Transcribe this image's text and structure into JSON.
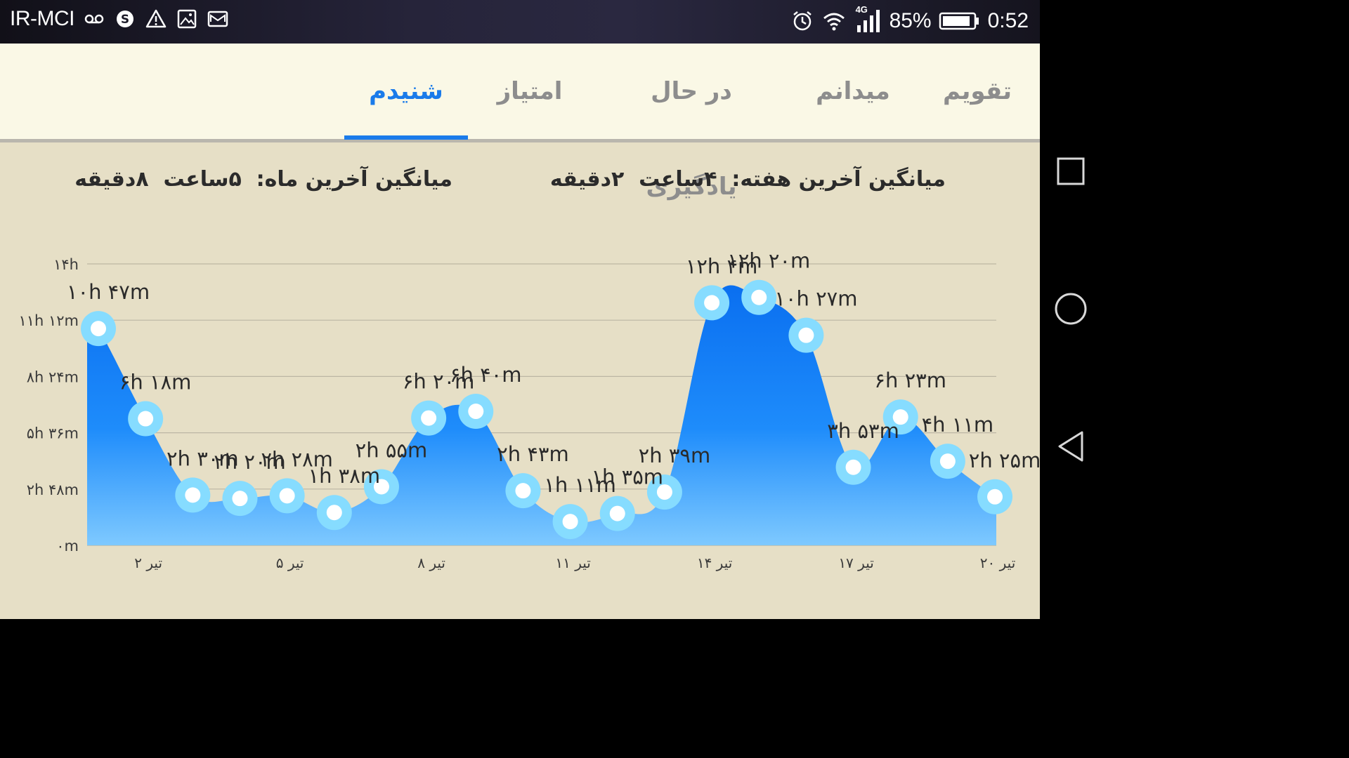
{
  "status_bar": {
    "carrier": "IR-MCI",
    "network": "4G",
    "battery": "85%",
    "time": "0:52",
    "icons": [
      "voicemail-icon",
      "skype-icon",
      "warning-icon",
      "gallery-icon",
      "mail-icon",
      "alarm-icon",
      "wifi-icon",
      "signal-icon",
      "battery-icon"
    ]
  },
  "tabs": [
    {
      "label": "تقویم",
      "active": false
    },
    {
      "label": "میدانم",
      "active": false
    },
    {
      "label": "در حال یادگیری",
      "active": false
    },
    {
      "label": "امتیاز",
      "active": false
    },
    {
      "label": "شنیدم",
      "active": true
    }
  ],
  "averages": {
    "week": "میانگین آخرین هفته:  ۴ساعت  ۲دقیقه",
    "month": "میانگین آخرین ماه:  ۵ساعت  ۸دقیقه"
  },
  "colors": {
    "accent": "#1a7bea",
    "area_top": "#0a6ff0",
    "area_bottom": "#7ec9ff",
    "point_ring": "#86dcff",
    "background": "#e6dfc6"
  },
  "chart_data": {
    "type": "area",
    "title": "",
    "xlabel": "",
    "ylabel": "",
    "y_unit": "minutes",
    "ylim": [
      0,
      840
    ],
    "y_ticks": [
      {
        "value": 0,
        "label": "۰m"
      },
      {
        "value": 168,
        "label": "۲h ۴۸m"
      },
      {
        "value": 336,
        "label": "۵h ۳۶m"
      },
      {
        "value": 504,
        "label": "۸h ۲۴m"
      },
      {
        "value": 672,
        "label": "۱۱h ۱۲m"
      },
      {
        "value": 840,
        "label": "۱۴h"
      }
    ],
    "x_ticks": [
      {
        "day": 2,
        "label": "۲ تیر"
      },
      {
        "day": 5,
        "label": "۵ تیر"
      },
      {
        "day": 8,
        "label": "۸ تیر"
      },
      {
        "day": 11,
        "label": "۱۱ تیر"
      },
      {
        "day": 14,
        "label": "۱۴ تیر"
      },
      {
        "day": 17,
        "label": "۱۷ تیر"
      },
      {
        "day": 20,
        "label": "۲۰ تیر"
      }
    ],
    "points": [
      {
        "day": 1,
        "value": 647,
        "label": "۱۰h ۴۷m"
      },
      {
        "day": 2,
        "value": 378,
        "label": "۶h ۱۸m"
      },
      {
        "day": 3,
        "value": 150,
        "label": "۲h ۳۰m"
      },
      {
        "day": 4,
        "value": 140,
        "label": "۲h ۲۰m"
      },
      {
        "day": 5,
        "value": 148,
        "label": "۲h ۲۸m"
      },
      {
        "day": 6,
        "value": 98,
        "label": "۱h ۳۸m"
      },
      {
        "day": 7,
        "value": 175,
        "label": "۲h ۵۵m"
      },
      {
        "day": 8,
        "value": 380,
        "label": "۶h ۲۰m"
      },
      {
        "day": 9,
        "value": 400,
        "label": "۶h ۴۰m"
      },
      {
        "day": 10,
        "value": 163,
        "label": "۲h ۴۳m"
      },
      {
        "day": 11,
        "value": 71,
        "label": "۱h ۱۱m"
      },
      {
        "day": 12,
        "value": 95,
        "label": "۱h ۳۵m"
      },
      {
        "day": 13,
        "value": 159,
        "label": "۲h ۳۹m"
      },
      {
        "day": 14,
        "value": 724,
        "label": "۱۲h ۴m"
      },
      {
        "day": 15,
        "value": 740,
        "label": "۱۲h ۲۰m"
      },
      {
        "day": 16,
        "value": 627,
        "label": "۱۰h ۲۷m"
      },
      {
        "day": 17,
        "value": 233,
        "label": "۳h ۵۳m"
      },
      {
        "day": 18,
        "value": 383,
        "label": "۶h ۲۳m"
      },
      {
        "day": 19,
        "value": 251,
        "label": "۴h ۱۱m"
      },
      {
        "day": 20,
        "value": 145,
        "label": "۲h ۲۵m"
      }
    ],
    "grid": true,
    "legend": "none"
  }
}
